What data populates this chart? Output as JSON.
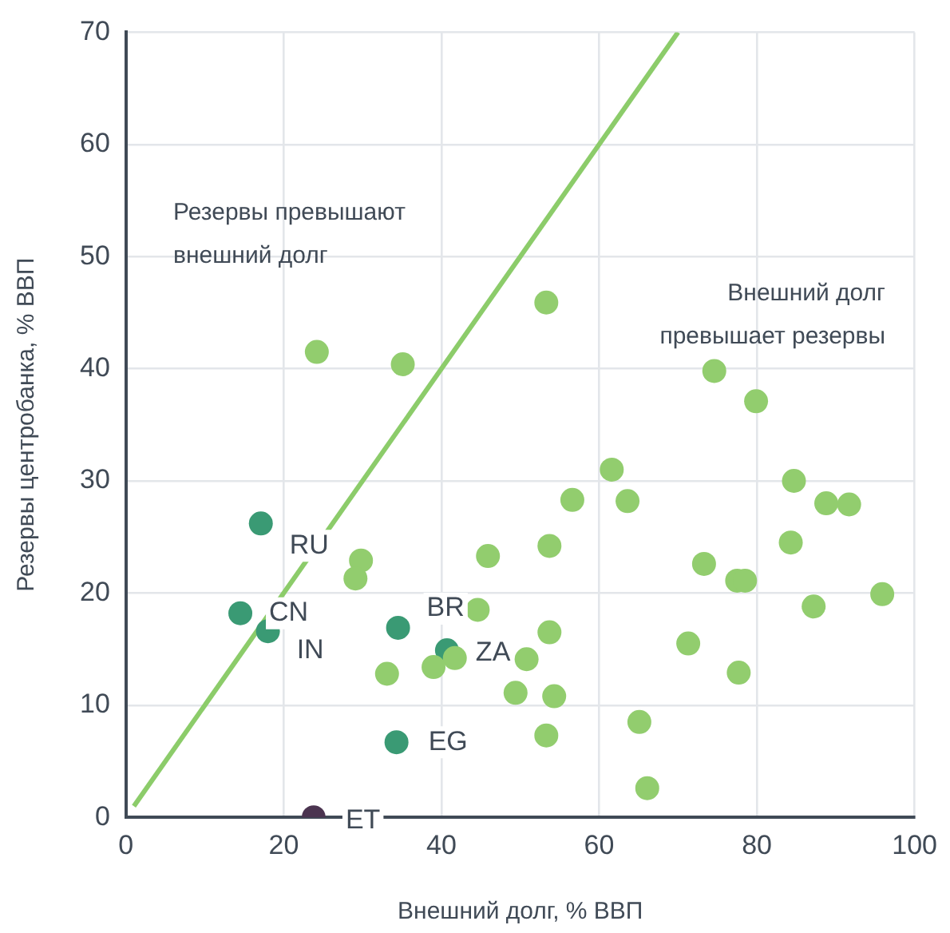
{
  "chart_data": {
    "type": "scatter",
    "xlabel": "Внешний долг, % ВВП",
    "ylabel": "Резервы центробанка, % ВВП",
    "xlim": [
      0,
      100
    ],
    "xticks": [
      0,
      20,
      40,
      60,
      80,
      100
    ],
    "ylim": [
      0,
      70
    ],
    "yticks": [
      0,
      10,
      20,
      30,
      40,
      50,
      60,
      70
    ],
    "grid": true,
    "legend": false,
    "marker": "circle",
    "series": [
      {
        "type": "line",
        "color": "#8ccc6a",
        "x": [
          1,
          70
        ],
        "values": [
          1,
          70
        ],
        "marker": "none"
      },
      {
        "color": "#92cd6e",
        "x": [
          24.2,
          35.1,
          53.3,
          74.6,
          79.9,
          61.6,
          63.6,
          56.6,
          84.7,
          88.8,
          91.7,
          84.3,
          53.7,
          45.9,
          73.3,
          77.5,
          78.5,
          29.8,
          29.1,
          44.6,
          87.2,
          95.9,
          53.7,
          71.3,
          77.7,
          41.7,
          50.8,
          33.1,
          39.0,
          49.4,
          54.3,
          53.3,
          65.1,
          66.1
        ],
        "values": [
          41.5,
          40.4,
          45.9,
          39.8,
          37.1,
          31.0,
          28.2,
          28.3,
          30.0,
          28.0,
          27.9,
          24.5,
          24.2,
          23.3,
          22.6,
          21.1,
          21.1,
          22.9,
          21.3,
          18.5,
          18.8,
          19.9,
          16.5,
          15.5,
          12.9,
          14.2,
          14.1,
          12.8,
          13.4,
          11.1,
          10.8,
          7.3,
          8.5,
          2.6
        ]
      },
      {
        "color": "#3a9a74",
        "x": [
          17.1,
          14.5,
          18.0,
          34.5,
          40.7,
          34.3
        ],
        "values": [
          26.2,
          18.2,
          16.6,
          16.9,
          14.9,
          6.7
        ]
      },
      {
        "color": "#4b3450",
        "x": [
          23.8
        ],
        "values": [
          0
        ]
      }
    ],
    "annotations": [
      "Резервы превышают\nвнешний долг",
      "Внешний долг\nпревышает резервы",
      {
        "text": "RU",
        "x": 17.1,
        "y": 26.2
      },
      {
        "text": "CN",
        "x": 14.5,
        "y": 18.2
      },
      {
        "text": "IN",
        "x": 18.0,
        "y": 16.6
      },
      {
        "text": "BR",
        "x": 34.5,
        "y": 16.9
      },
      {
        "text": "ZA",
        "x": 40.7,
        "y": 14.9
      },
      {
        "text": "EG",
        "x": 34.3,
        "y": 6.7
      },
      {
        "text": "ET",
        "x": 23.8,
        "y": 0
      }
    ]
  }
}
